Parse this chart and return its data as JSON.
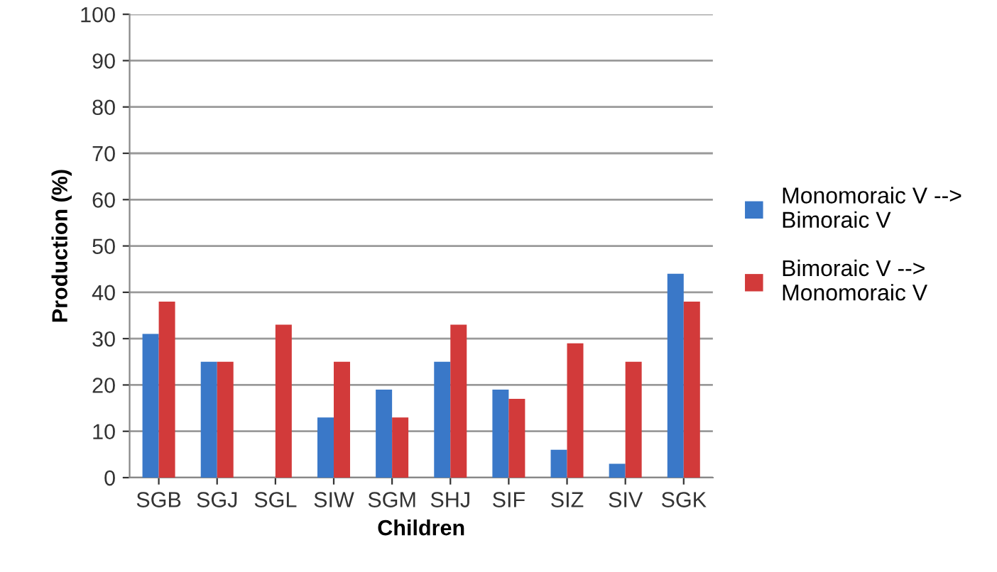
{
  "chart_data": {
    "type": "bar",
    "xlabel": "Children",
    "ylabel": "Production (%)",
    "categories": [
      "SGB",
      "SGJ",
      "SGL",
      "SIW",
      "SGM",
      "SHJ",
      "SIF",
      "SIZ",
      "SIV",
      "SGK"
    ],
    "series": [
      {
        "name": "Monomoraic V --> Bimoraic V",
        "color": "#3a78c8",
        "values": [
          31,
          25,
          null,
          13,
          19,
          25,
          19,
          6,
          3,
          44
        ]
      },
      {
        "name": "Bimoraic V --> Monomoraic V",
        "color": "#d23a3a",
        "values": [
          38,
          25,
          33,
          25,
          13,
          33,
          17,
          29,
          25,
          38
        ]
      }
    ],
    "ylim": [
      0,
      100
    ],
    "yticks": [
      0,
      10,
      20,
      30,
      40,
      50,
      60,
      70,
      80,
      90,
      100
    ],
    "grid": "y",
    "legend": "right"
  }
}
